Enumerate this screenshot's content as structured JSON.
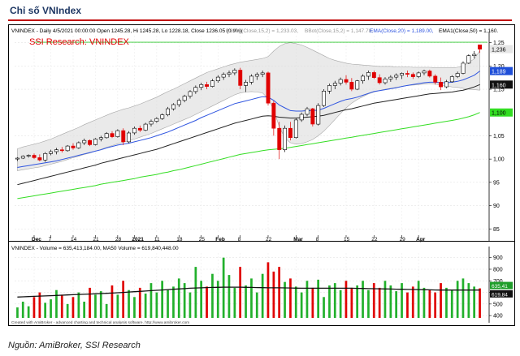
{
  "header": {
    "title": "Chỉ số VNIndex"
  },
  "source": "Nguồn: AmiBroker, SSI Research",
  "chart_data": {
    "type": "candlestick",
    "price_pane": {
      "info_line": "VNINDEX - Daily 4/5/2021 00:00:00 Open 1245.28, Hi 1245.28, Lo 1228.18, Close 1236.05 (0.9%)",
      "bbtop_label": "BBTop(Close,15,2) = 1,233.03,",
      "bbot_label": "BBot(Close,15,2) = 1,147.78,",
      "ema20_label": "EMA(Close,20) = 1,189.00,",
      "ema50_label": "EMA1(Close,50) = 1,160.",
      "watermark": "SSI Research: VNINDEX",
      "ylim": [
        840,
        1265
      ],
      "y_ticks": [
        {
          "v": 1250,
          "t": "1,25"
        },
        {
          "v": 1200,
          "t": "1,20"
        },
        {
          "v": 1150,
          "t": "1,15"
        },
        {
          "v": 1050,
          "t": "1,05"
        },
        {
          "v": 1000,
          "t": "1,00"
        },
        {
          "v": 950,
          "t": "95"
        },
        {
          "v": 900,
          "t": "90"
        },
        {
          "v": 850,
          "t": "85"
        }
      ],
      "resistance": 1251,
      "markers": [
        {
          "v": 1236.05,
          "text": "1,236",
          "color": "#000000",
          "bg": "#e6e6e6"
        },
        {
          "v": 1189,
          "text": "1,189",
          "color": "#ffffff",
          "bg": "#1f4fd8"
        },
        {
          "v": 1160,
          "text": "1,160",
          "color": "#ffffff",
          "bg": "#111111"
        },
        {
          "v": 1100,
          "text": "1,100",
          "color": "#000000",
          "bg": "#33dd22"
        }
      ],
      "candles": [
        [
          1000,
          1004,
          996,
          1002
        ],
        [
          1002,
          1008,
          1000,
          1006
        ],
        [
          1006,
          1010,
          1003,
          1008
        ],
        [
          1008,
          1012,
          1000,
          1003
        ],
        [
          1003,
          1010,
          995,
          998
        ],
        [
          998,
          1015,
          994,
          1012
        ],
        [
          1012,
          1020,
          1008,
          1016
        ],
        [
          1016,
          1024,
          1010,
          1020
        ],
        [
          1020,
          1026,
          1014,
          1018
        ],
        [
          1018,
          1030,
          1016,
          1028
        ],
        [
          1028,
          1034,
          1020,
          1024
        ],
        [
          1024,
          1038,
          1022,
          1035
        ],
        [
          1035,
          1044,
          1030,
          1040
        ],
        [
          1040,
          1042,
          1028,
          1031
        ],
        [
          1031,
          1045,
          1029,
          1043
        ],
        [
          1043,
          1050,
          1038,
          1046
        ],
        [
          1046,
          1058,
          1044,
          1055
        ],
        [
          1055,
          1060,
          1045,
          1048
        ],
        [
          1048,
          1064,
          1046,
          1061
        ],
        [
          1061,
          1066,
          1030,
          1037
        ],
        [
          1037,
          1060,
          1034,
          1056
        ],
        [
          1056,
          1070,
          1052,
          1066
        ],
        [
          1066,
          1072,
          1058,
          1062
        ],
        [
          1062,
          1078,
          1060,
          1075
        ],
        [
          1075,
          1085,
          1070,
          1081
        ],
        [
          1081,
          1090,
          1078,
          1087
        ],
        [
          1087,
          1098,
          1084,
          1095
        ],
        [
          1095,
          1112,
          1092,
          1108
        ],
        [
          1108,
          1120,
          1104,
          1117
        ],
        [
          1117,
          1130,
          1112,
          1126
        ],
        [
          1126,
          1138,
          1122,
          1135
        ],
        [
          1135,
          1148,
          1130,
          1145
        ],
        [
          1145,
          1158,
          1140,
          1154
        ],
        [
          1154,
          1164,
          1148,
          1160
        ],
        [
          1160,
          1166,
          1150,
          1156
        ],
        [
          1156,
          1172,
          1154,
          1168
        ],
        [
          1168,
          1180,
          1164,
          1176
        ],
        [
          1176,
          1186,
          1170,
          1182
        ],
        [
          1182,
          1190,
          1176,
          1185
        ],
        [
          1185,
          1195,
          1180,
          1191
        ],
        [
          1191,
          1196,
          1150,
          1158
        ],
        [
          1158,
          1170,
          1144,
          1165
        ],
        [
          1165,
          1182,
          1160,
          1178
        ],
        [
          1178,
          1186,
          1170,
          1182
        ],
        [
          1182,
          1190,
          1176,
          1185
        ],
        [
          1185,
          1188,
          1115,
          1120
        ],
        [
          1120,
          1125,
          1050,
          1066
        ],
        [
          1066,
          1080,
          1000,
          1020
        ],
        [
          1020,
          1072,
          1015,
          1066
        ],
        [
          1066,
          1080,
          1040,
          1046
        ],
        [
          1046,
          1088,
          1044,
          1084
        ],
        [
          1084,
          1100,
          1080,
          1096
        ],
        [
          1096,
          1112,
          1092,
          1108
        ],
        [
          1108,
          1110,
          1070,
          1075
        ],
        [
          1075,
          1120,
          1072,
          1115
        ],
        [
          1115,
          1150,
          1112,
          1146
        ],
        [
          1146,
          1162,
          1140,
          1158
        ],
        [
          1158,
          1168,
          1150,
          1163
        ],
        [
          1163,
          1175,
          1158,
          1171
        ],
        [
          1171,
          1180,
          1160,
          1165
        ],
        [
          1165,
          1174,
          1146,
          1150
        ],
        [
          1150,
          1170,
          1148,
          1168
        ],
        [
          1168,
          1182,
          1162,
          1178
        ],
        [
          1178,
          1190,
          1170,
          1186
        ],
        [
          1186,
          1190,
          1172,
          1175
        ],
        [
          1175,
          1182,
          1160,
          1164
        ],
        [
          1164,
          1176,
          1160,
          1172
        ],
        [
          1172,
          1180,
          1166,
          1176
        ],
        [
          1176,
          1184,
          1170,
          1180
        ],
        [
          1180,
          1186,
          1172,
          1184
        ],
        [
          1184,
          1190,
          1176,
          1182
        ],
        [
          1182,
          1186,
          1172,
          1177
        ],
        [
          1177,
          1188,
          1174,
          1185
        ],
        [
          1185,
          1192,
          1180,
          1189
        ],
        [
          1189,
          1192,
          1175,
          1178
        ],
        [
          1178,
          1182,
          1160,
          1165
        ],
        [
          1165,
          1175,
          1148,
          1155
        ],
        [
          1155,
          1170,
          1152,
          1166
        ],
        [
          1166,
          1180,
          1164,
          1177
        ],
        [
          1177,
          1188,
          1174,
          1184
        ],
        [
          1184,
          1210,
          1182,
          1206
        ],
        [
          1206,
          1225,
          1204,
          1222
        ],
        [
          1222,
          1232,
          1216,
          1225
        ],
        [
          1245.28,
          1245.28,
          1228.18,
          1236.05
        ]
      ],
      "bb_top": [
        1022,
        1026,
        1029,
        1032,
        1035,
        1039,
        1043,
        1048,
        1053,
        1058,
        1063,
        1068,
        1074,
        1079,
        1084,
        1089,
        1094,
        1099,
        1103,
        1107,
        1110,
        1114,
        1118,
        1123,
        1128,
        1133,
        1139,
        1145,
        1150,
        1156,
        1162,
        1168,
        1174,
        1180,
        1186,
        1190,
        1194,
        1198,
        1202,
        1205,
        1208,
        1210,
        1212,
        1214,
        1216,
        1220,
        1232,
        1242,
        1248,
        1250,
        1248,
        1245,
        1240,
        1234,
        1228,
        1222,
        1216,
        1212,
        1209,
        1206,
        1204,
        1203,
        1202,
        1201,
        1200,
        1199,
        1199,
        1199,
        1198,
        1198,
        1198,
        1197,
        1197,
        1197,
        1197,
        1196,
        1196,
        1196,
        1196,
        1197,
        1200,
        1208,
        1215,
        1233
      ],
      "bb_bot": [
        975,
        977,
        979,
        981,
        983,
        986,
        989,
        992,
        995,
        999,
        1003,
        1006,
        1010,
        1013,
        1017,
        1021,
        1025,
        1029,
        1033,
        1036,
        1040,
        1043,
        1047,
        1051,
        1055,
        1060,
        1065,
        1070,
        1075,
        1080,
        1085,
        1090,
        1096,
        1102,
        1108,
        1114,
        1120,
        1126,
        1132,
        1138,
        1142,
        1144,
        1145,
        1144,
        1142,
        1130,
        1105,
        1070,
        1045,
        1035,
        1032,
        1033,
        1037,
        1042,
        1050,
        1060,
        1072,
        1085,
        1098,
        1110,
        1120,
        1128,
        1134,
        1140,
        1144,
        1147,
        1150,
        1152,
        1154,
        1156,
        1158,
        1159,
        1160,
        1161,
        1162,
        1161,
        1159,
        1157,
        1155,
        1154,
        1152,
        1150,
        1149,
        1148
      ],
      "ema20": [
        982,
        984,
        986,
        988,
        990,
        992,
        994,
        996,
        999,
        1002,
        1005,
        1008,
        1011,
        1014,
        1017,
        1020,
        1024,
        1027,
        1030,
        1032,
        1034,
        1037,
        1040,
        1043,
        1046,
        1050,
        1054,
        1058,
        1063,
        1068,
        1073,
        1078,
        1083,
        1089,
        1094,
        1099,
        1104,
        1109,
        1114,
        1119,
        1122,
        1125,
        1128,
        1131,
        1134,
        1133,
        1126,
        1116,
        1110,
        1104,
        1103,
        1103,
        1104,
        1104,
        1105,
        1109,
        1114,
        1119,
        1124,
        1128,
        1130,
        1133,
        1137,
        1141,
        1145,
        1147,
        1149,
        1151,
        1153,
        1156,
        1158,
        1160,
        1162,
        1164,
        1165,
        1165,
        1164,
        1164,
        1165,
        1167,
        1170,
        1175,
        1180,
        1189
      ],
      "ema50": [
        945,
        948,
        951,
        954,
        957,
        960,
        963,
        966,
        969,
        972,
        975,
        978,
        981,
        984,
        987,
        991,
        994,
        997,
        1000,
        1003,
        1006,
        1009,
        1012,
        1015,
        1018,
        1021,
        1025,
        1029,
        1033,
        1037,
        1041,
        1045,
        1049,
        1053,
        1057,
        1061,
        1065,
        1069,
        1073,
        1077,
        1080,
        1083,
        1086,
        1089,
        1092,
        1093,
        1092,
        1090,
        1089,
        1088,
        1088,
        1089,
        1090,
        1091,
        1092,
        1094,
        1097,
        1100,
        1103,
        1106,
        1108,
        1111,
        1114,
        1117,
        1120,
        1122,
        1124,
        1126,
        1128,
        1130,
        1132,
        1134,
        1136,
        1138,
        1140,
        1141,
        1142,
        1143,
        1144,
        1146,
        1148,
        1151,
        1155,
        1160
      ],
      "ma_long": [
        915,
        917,
        919,
        921,
        923,
        925,
        927,
        929,
        931,
        933,
        935,
        937,
        939,
        941,
        943,
        946,
        948,
        950,
        952,
        954,
        956,
        958,
        961,
        963,
        965,
        967,
        970,
        972,
        975,
        977,
        980,
        983,
        986,
        989,
        992,
        995,
        998,
        1001,
        1004,
        1007,
        1010,
        1012,
        1014,
        1016,
        1018,
        1020,
        1021,
        1022,
        1023,
        1025,
        1027,
        1029,
        1031,
        1033,
        1035,
        1037,
        1039,
        1041,
        1043,
        1045,
        1047,
        1049,
        1051,
        1053,
        1055,
        1057,
        1059,
        1061,
        1063,
        1065,
        1067,
        1069,
        1071,
        1073,
        1075,
        1077,
        1079,
        1081,
        1083,
        1085,
        1088,
        1091,
        1095,
        1100
      ]
    },
    "volume_pane": {
      "info_line": "VNINDEX - Volume = 635,413,184.00, MA50 Volume = 619,840,448.00",
      "ylim": [
        380,
        940
      ],
      "y_ticks": [
        {
          "v": 900,
          "t": "900"
        },
        {
          "v": 800,
          "t": "800"
        },
        {
          "v": 700,
          "t": "700"
        },
        {
          "v": 600,
          "t": "600"
        },
        {
          "v": 500,
          "t": "500"
        },
        {
          "v": 400,
          "t": "400"
        }
      ],
      "markers": [
        {
          "v": 635,
          "text": "635,41",
          "color": "#ffffff",
          "bg": "#1f9d2a"
        },
        {
          "v": 619,
          "text": "619,84",
          "color": "#ffffff",
          "bg": "#111111"
        }
      ],
      "volume": [
        470,
        520,
        480,
        560,
        600,
        510,
        540,
        620,
        580,
        500,
        560,
        600,
        520,
        640,
        580,
        610,
        500,
        660,
        580,
        700,
        620,
        560,
        640,
        590,
        680,
        600,
        700,
        620,
        650,
        720,
        680,
        600,
        820,
        700,
        650,
        760,
        700,
        900,
        750,
        640,
        820,
        660,
        720,
        600,
        760,
        860,
        780,
        820,
        690,
        720,
        650,
        600,
        700,
        640,
        710,
        560,
        660,
        680,
        620,
        700,
        640,
        660,
        700,
        620,
        680,
        640,
        700,
        660,
        610,
        680,
        600,
        650,
        700,
        640,
        620,
        600,
        680,
        640,
        620,
        700,
        720,
        680,
        650,
        635
      ],
      "ma50": [
        560,
        562,
        564,
        566,
        568,
        570,
        572,
        574,
        576,
        578,
        580,
        582,
        584,
        586,
        588,
        590,
        592,
        594,
        597,
        600,
        603,
        606,
        609,
        612,
        615,
        618,
        621,
        624,
        627,
        630,
        633,
        636,
        638,
        640,
        642,
        643,
        644,
        645,
        645,
        645,
        645,
        644,
        643,
        642,
        641,
        640,
        640,
        640,
        639,
        638,
        637,
        636,
        636,
        636,
        636,
        636,
        636,
        636,
        636,
        636,
        636,
        635,
        634,
        633,
        632,
        631,
        630,
        629,
        628,
        627,
        626,
        625,
        624,
        623,
        622,
        621,
        620,
        620,
        620,
        620,
        620,
        620,
        620,
        620
      ]
    },
    "x_ticks": [
      {
        "i": 3,
        "t": "Dec"
      },
      {
        "i": 6,
        "t": "7"
      },
      {
        "i": 10,
        "t": "14"
      },
      {
        "i": 14,
        "t": "21"
      },
      {
        "i": 18,
        "t": "28"
      },
      {
        "i": 21,
        "t": "2021"
      },
      {
        "i": 25,
        "t": "11"
      },
      {
        "i": 29,
        "t": "18"
      },
      {
        "i": 33,
        "t": "25"
      },
      {
        "i": 36,
        "t": "Feb"
      },
      {
        "i": 40,
        "t": "8"
      },
      {
        "i": 45,
        "t": "22"
      },
      {
        "i": 50,
        "t": "Mar"
      },
      {
        "i": 54,
        "t": "8"
      },
      {
        "i": 59,
        "t": "15"
      },
      {
        "i": 64,
        "t": "22"
      },
      {
        "i": 69,
        "t": "29"
      },
      {
        "i": 72,
        "t": "Apr"
      }
    ],
    "footer_note": "Created with AmiBroker - advanced charting and technical analysis software. http://www.amibroker.com"
  }
}
